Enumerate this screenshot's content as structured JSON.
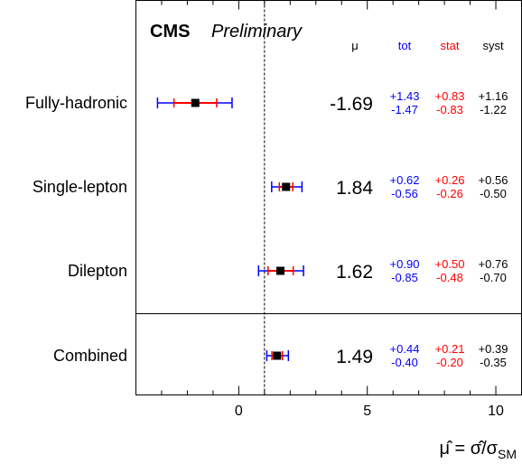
{
  "chart_data": {
    "type": "scatter",
    "subtype": "forest-plot-horizontal-error-bars",
    "header": {
      "experiment": "CMS",
      "status": "Preliminary"
    },
    "column_headers": {
      "mu": "μ",
      "tot": "tot",
      "stat": "stat",
      "syst": "syst"
    },
    "xlim": [
      -4.0,
      11.0
    ],
    "x_ticks": [
      0,
      5,
      10
    ],
    "x_tick_labels": [
      "0",
      "5",
      "10"
    ],
    "reference_line_x": 1.0,
    "x_axis_label": {
      "base": "μ̂ = σ̂/σ",
      "subscript": "SM"
    },
    "colors": {
      "tot": "#0000ff",
      "stat": "#ff0000",
      "syst": "#000000",
      "marker": "#000000",
      "frame": "#000000"
    },
    "categories": [
      {
        "label": "Fully-hadronic",
        "mu": -1.69,
        "mu_label": "-1.69",
        "tot_up": 1.43,
        "tot_down": 1.47,
        "stat_up": 0.83,
        "stat_down": 0.83,
        "syst_up": 1.16,
        "syst_down": 1.22,
        "tot_up_label": "+1.43",
        "tot_down_label": "-1.47",
        "stat_up_label": "+0.83",
        "stat_down_label": "-0.83",
        "syst_up_label": "+1.16",
        "syst_down_label": "-1.22"
      },
      {
        "label": "Single-lepton",
        "mu": 1.84,
        "mu_label": "1.84",
        "tot_up": 0.62,
        "tot_down": 0.56,
        "stat_up": 0.26,
        "stat_down": 0.26,
        "syst_up": 0.56,
        "syst_down": 0.5,
        "tot_up_label": "+0.62",
        "tot_down_label": "-0.56",
        "stat_up_label": "+0.26",
        "stat_down_label": "-0.26",
        "syst_up_label": "+0.56",
        "syst_down_label": "-0.50"
      },
      {
        "label": "Dilepton",
        "mu": 1.62,
        "mu_label": "1.62",
        "tot_up": 0.9,
        "tot_down": 0.85,
        "stat_up": 0.5,
        "stat_down": 0.48,
        "syst_up": 0.76,
        "syst_down": 0.7,
        "tot_up_label": "+0.90",
        "tot_down_label": "-0.85",
        "stat_up_label": "+0.50",
        "stat_down_label": "-0.48",
        "syst_up_label": "+0.76",
        "syst_down_label": "-0.70"
      },
      {
        "label": "Combined",
        "mu": 1.49,
        "mu_label": "1.49",
        "tot_up": 0.44,
        "tot_down": 0.4,
        "stat_up": 0.21,
        "stat_down": 0.2,
        "syst_up": 0.39,
        "syst_down": 0.35,
        "tot_up_label": "+0.44",
        "tot_down_label": "-0.40",
        "stat_up_label": "+0.21",
        "stat_down_label": "-0.20",
        "syst_up_label": "+0.39",
        "syst_down_label": "-0.35"
      }
    ]
  }
}
